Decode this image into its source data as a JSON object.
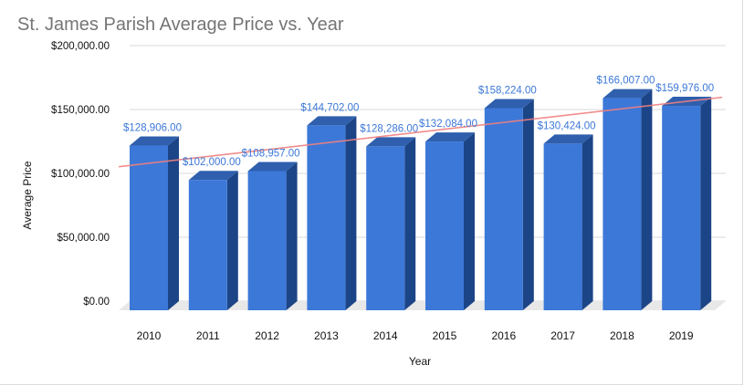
{
  "chart_data": {
    "type": "bar",
    "title": "St. James Parish Average Price vs. Year",
    "xlabel": "Year",
    "ylabel": "Average Price",
    "categories": [
      "2010",
      "2011",
      "2012",
      "2013",
      "2014",
      "2015",
      "2016",
      "2017",
      "2018",
      "2019"
    ],
    "values": [
      128906,
      102000,
      108957,
      144702,
      128286,
      132084,
      158224,
      130424,
      166007,
      159976
    ],
    "data_labels": [
      "$128,906.00",
      "$102,000.00",
      "$108,957.00",
      "$144,702.00",
      "$128,286.00",
      "$132,084.00",
      "$158,224.00",
      "$130,424.00",
      "$166,007.00",
      "$159,976.00"
    ],
    "yticks": [
      0,
      50000,
      100000,
      150000,
      200000
    ],
    "ytick_labels": [
      "$0.00",
      "$50,000.00",
      "$100,000.00",
      "$150,000.00",
      "$200,000.00"
    ],
    "ylim": [
      0,
      200000
    ],
    "grid": true,
    "style": "3d-bar",
    "trendline": {
      "type": "linear",
      "color": "#f08080"
    },
    "colors": {
      "bar": "#3c78d8",
      "bar_side": "#1c4587",
      "bar_top": "#2f5fad",
      "label": "#3c78d8"
    }
  }
}
